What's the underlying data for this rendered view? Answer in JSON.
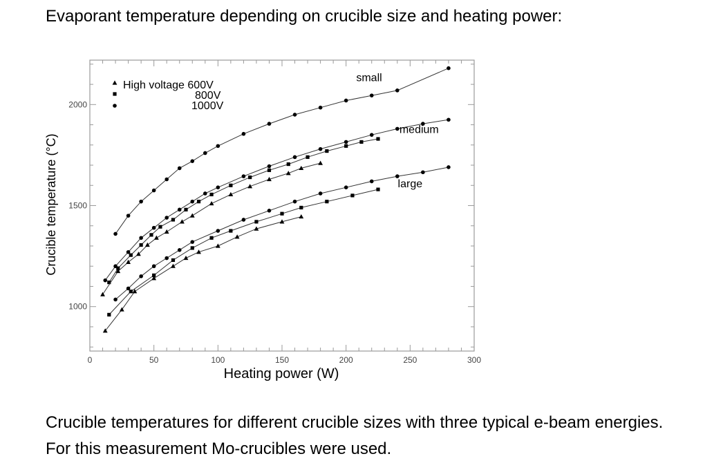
{
  "heading": "Evaporant temperature depending on crucible size and heating power:",
  "caption_line1": "Crucible temperatures for different crucible sizes with three typical e-beam energies.",
  "caption_line2": "For this measurement Mo-crucibles were used.",
  "chart_data": {
    "type": "line",
    "xlabel": "Heating power (W)",
    "ylabel": "Crucible temperature (°C)",
    "xlim": [
      0,
      300
    ],
    "ylim": [
      780,
      2220
    ],
    "x_ticks": [
      "0",
      "50",
      "100",
      "150",
      "200",
      "250",
      "300"
    ],
    "y_ticks": [
      "1000",
      "1500",
      "2000"
    ],
    "legend": {
      "title": "High voltage",
      "placement": "top-left",
      "entries": [
        {
          "label": "600V",
          "marker": "triangle"
        },
        {
          "label": "800V",
          "marker": "square"
        },
        {
          "label": "1000V",
          "marker": "circle"
        }
      ]
    },
    "annotations": [
      {
        "text": "small",
        "x": 218,
        "y": 2115
      },
      {
        "text": "medium",
        "x": 257,
        "y": 1860
      },
      {
        "text": "large",
        "x": 250,
        "y": 1590
      }
    ],
    "series": [
      {
        "group": "small",
        "marker": "circle",
        "x": [
          20,
          30,
          40,
          50,
          60,
          70,
          80,
          90,
          100,
          120,
          140,
          160,
          180,
          200,
          220,
          240,
          280
        ],
        "y": [
          1360,
          1450,
          1520,
          1575,
          1630,
          1685,
          1720,
          1760,
          1795,
          1855,
          1905,
          1950,
          1985,
          2020,
          2045,
          2070,
          2180
        ]
      },
      {
        "group": "medium",
        "marker": "circle",
        "x": [
          12,
          20,
          30,
          40,
          50,
          60,
          70,
          80,
          90,
          100,
          120,
          140,
          160,
          180,
          200,
          220,
          240,
          260,
          280
        ],
        "y": [
          1130,
          1200,
          1270,
          1340,
          1390,
          1440,
          1480,
          1520,
          1560,
          1590,
          1645,
          1695,
          1740,
          1780,
          1815,
          1850,
          1880,
          1905,
          1925
        ]
      },
      {
        "group": "medium",
        "marker": "square",
        "x": [
          15,
          22,
          32,
          40,
          48,
          55,
          65,
          75,
          85,
          95,
          110,
          125,
          140,
          155,
          170,
          185,
          200,
          212,
          225
        ],
        "y": [
          1120,
          1190,
          1255,
          1305,
          1355,
          1395,
          1430,
          1480,
          1520,
          1555,
          1600,
          1640,
          1675,
          1705,
          1740,
          1770,
          1795,
          1815,
          1830
        ]
      },
      {
        "group": "medium",
        "marker": "triangle",
        "x": [
          10,
          22,
          30,
          38,
          45,
          52,
          60,
          72,
          80,
          95,
          110,
          125,
          140,
          155,
          165,
          180
        ],
        "y": [
          1060,
          1175,
          1220,
          1260,
          1305,
          1340,
          1370,
          1420,
          1450,
          1510,
          1555,
          1595,
          1630,
          1660,
          1685,
          1710
        ]
      },
      {
        "group": "large",
        "marker": "circle",
        "x": [
          20,
          30,
          40,
          50,
          60,
          70,
          80,
          100,
          120,
          140,
          160,
          180,
          200,
          220,
          240,
          260,
          280
        ],
        "y": [
          1035,
          1090,
          1150,
          1200,
          1240,
          1280,
          1320,
          1375,
          1430,
          1475,
          1520,
          1560,
          1590,
          1620,
          1645,
          1665,
          1690
        ]
      },
      {
        "group": "large",
        "marker": "square",
        "x": [
          15,
          32,
          50,
          65,
          80,
          95,
          110,
          130,
          150,
          165,
          185,
          205,
          225
        ],
        "y": [
          960,
          1075,
          1155,
          1230,
          1290,
          1340,
          1375,
          1420,
          1460,
          1490,
          1520,
          1550,
          1580
        ]
      },
      {
        "group": "large",
        "marker": "triangle",
        "x": [
          12,
          25,
          35,
          50,
          65,
          75,
          85,
          100,
          115,
          130,
          150,
          165
        ],
        "y": [
          880,
          985,
          1075,
          1140,
          1200,
          1240,
          1270,
          1300,
          1345,
          1385,
          1420,
          1445
        ]
      }
    ]
  }
}
